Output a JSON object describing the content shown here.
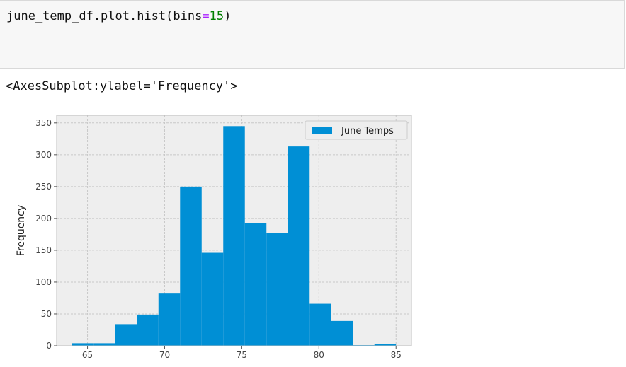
{
  "code_cell": {
    "code_prefix": "june_temp_df.plot.hist(bins",
    "code_eq": "=",
    "code_num": "15",
    "code_suffix": ")"
  },
  "output": {
    "repr": "<AxesSubplot:ylabel='Frequency'>"
  },
  "colors": {
    "bar": "#008fd5",
    "axes_bg": "#eeeeee",
    "grid": "#c8c8c8",
    "code_bg": "#f7f7f7",
    "keyword_eq": "#aa22ff",
    "number": "#008000"
  },
  "chart_data": {
    "type": "bar",
    "subtype": "histogram",
    "bins": 15,
    "bin_edges": [
      64,
      65.4,
      66.8,
      68.2,
      69.6,
      71.0,
      72.4,
      73.8,
      75.2,
      76.6,
      78.0,
      79.4,
      80.8,
      82.2,
      83.6,
      85
    ],
    "values": [
      4,
      4,
      34,
      49,
      82,
      250,
      146,
      345,
      193,
      177,
      313,
      66,
      39,
      1,
      3
    ],
    "series": [
      {
        "name": "June Temps",
        "color": "#008fd5"
      }
    ],
    "xlabel": "",
    "ylabel": "Frequency",
    "xlim": [
      63.0,
      86.0
    ],
    "ylim": [
      0,
      362
    ],
    "xticks": [
      65,
      70,
      75,
      80,
      85
    ],
    "yticks": [
      0,
      50,
      100,
      150,
      200,
      250,
      300,
      350
    ],
    "grid": true,
    "legend_position": "top-right"
  }
}
